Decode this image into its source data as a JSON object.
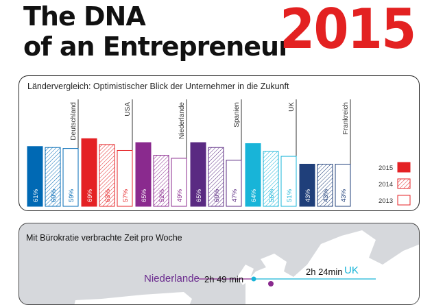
{
  "header": {
    "title_line1": "The DNA",
    "title_line2": "of an Entrepreneur",
    "year": "2015"
  },
  "chart_data": {
    "type": "bar",
    "title": "Ländervergleich: Optimistischer Blick der Unternehmer in die Zukunft",
    "categories": [
      "Deutschland",
      "USA",
      "Niederlande",
      "Spanien",
      "UK",
      "Frankreich"
    ],
    "colors": [
      "#0069b4",
      "#e42124",
      "#8a2a8e",
      "#5a2a82",
      "#18b4d8",
      "#1f3f7a"
    ],
    "series": [
      {
        "name": "2015",
        "values": [
          61,
          69,
          65,
          65,
          64,
          43
        ],
        "labels": [
          "61%",
          "69%",
          "65%",
          "65%",
          "64%",
          "43%"
        ]
      },
      {
        "name": "2014",
        "values": [
          60,
          63,
          52,
          60,
          56,
          43
        ],
        "labels": [
          "60%",
          "63%",
          "52%",
          "60%",
          "56%",
          "43%"
        ]
      },
      {
        "name": "2013",
        "values": [
          59,
          57,
          49,
          47,
          51,
          43
        ],
        "labels": [
          "59%",
          "57%",
          "49%",
          "47%",
          "51%",
          "43%"
        ]
      }
    ],
    "legend_position": "bottom-right",
    "legend_color": "#e42124"
  },
  "panel2": {
    "title": "Mit Bürokratie verbrachte Zeit pro Woche",
    "nl_label": "Niederlande",
    "nl_time": "2h 49 min",
    "uk_time": "2h 24min",
    "uk_label": "UK"
  }
}
